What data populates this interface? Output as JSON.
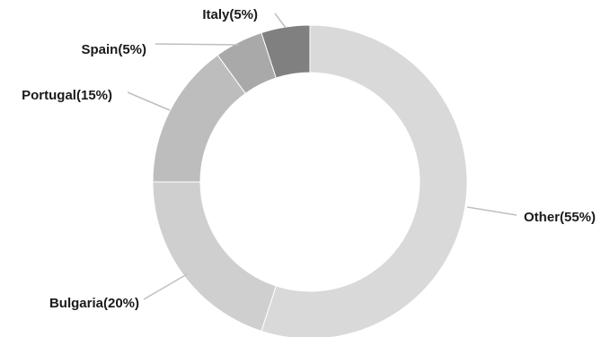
{
  "chart_data": {
    "type": "pie",
    "variant": "donut",
    "title": "",
    "legend": "none",
    "categories": [
      "Other",
      "Bulgaria",
      "Portugal",
      "Spain",
      "Italy"
    ],
    "values": [
      55,
      20,
      15,
      5,
      5
    ],
    "labels": [
      "Other(55%)",
      "Bulgaria(20%)",
      "Portugal(15%)",
      "Spain(5%)",
      "Italy(5%)"
    ],
    "colors": [
      "#d9d9d9",
      "#cfcfcf",
      "#bdbdbd",
      "#a9a9a9",
      "#808080"
    ],
    "label_line_color": "#bfbfbf"
  }
}
